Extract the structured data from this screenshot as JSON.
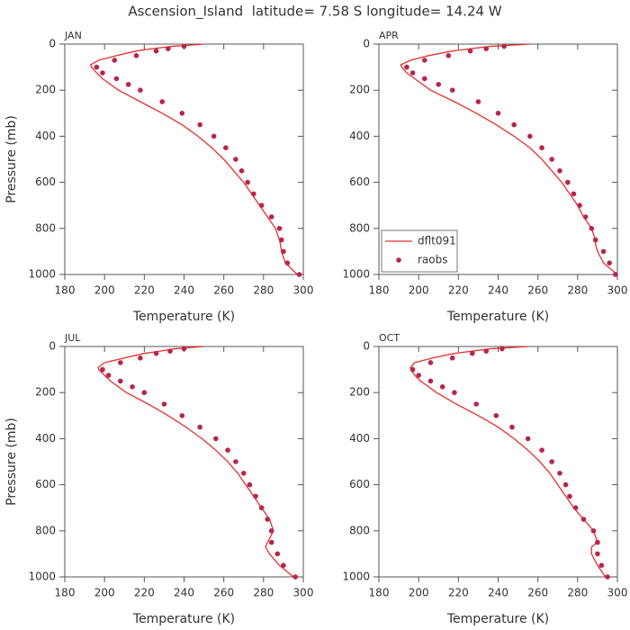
{
  "title": "Ascension_Island  latitude= 7.58 S longitude= 14.24 W",
  "chart_data": [
    {
      "type": "line",
      "panel_label": "JAN",
      "xlabel": "Temperature (K)",
      "ylabel": "Pressure (mb)",
      "xlim": [
        180,
        300
      ],
      "xticks": [
        180,
        200,
        220,
        240,
        260,
        280,
        300
      ],
      "ylim": [
        0,
        1000
      ],
      "yticks": [
        0,
        200,
        400,
        600,
        800,
        1000
      ],
      "y_reversed": true,
      "legend": false,
      "series": [
        {
          "type": "line",
          "color": "#e4302b",
          "x": [
            250,
            234,
            224,
            216,
            206,
            197,
            193,
            193.5,
            196,
            199,
            207,
            218,
            229,
            239,
            247,
            254,
            260,
            265,
            270,
            274,
            278,
            282,
            286,
            288,
            288.5,
            289,
            291,
            297
          ],
          "y": [
            0,
            10,
            20,
            30,
            50,
            70,
            90,
            100,
            125,
            150,
            200,
            250,
            300,
            350,
            400,
            450,
            500,
            550,
            600,
            650,
            700,
            750,
            800,
            850,
            870,
            900,
            950,
            1000
          ]
        },
        {
          "type": "scatter",
          "color": "#b8254d",
          "x": [
            240,
            232,
            226,
            216,
            205,
            196,
            199,
            206,
            212,
            218,
            229,
            239,
            248,
            255,
            261,
            266,
            269,
            272,
            275,
            279,
            284,
            288,
            289,
            290,
            292,
            298
          ],
          "y": [
            10,
            20,
            30,
            50,
            70,
            100,
            125,
            150,
            175,
            200,
            250,
            300,
            350,
            400,
            450,
            500,
            550,
            600,
            650,
            700,
            750,
            800,
            850,
            900,
            950,
            1000
          ]
        }
      ]
    },
    {
      "type": "line",
      "panel_label": "APR",
      "xlabel": "Temperature (K)",
      "xlim": [
        180,
        300
      ],
      "xticks": [
        180,
        200,
        220,
        240,
        260,
        280,
        300
      ],
      "ylim": [
        0,
        1000
      ],
      "yticks": [
        0,
        200,
        400,
        600,
        800,
        1000
      ],
      "y_reversed": true,
      "legend": "lower left",
      "series": [
        {
          "type": "line",
          "name": "dflt091",
          "color": "#e4302b",
          "x": [
            256,
            236,
            226,
            217,
            205,
            196,
            191,
            191.5,
            194,
            198,
            206,
            218,
            229,
            239,
            248,
            256,
            262,
            267,
            272,
            276,
            280,
            283,
            287,
            289,
            289,
            290,
            293,
            300
          ],
          "y": [
            0,
            10,
            20,
            30,
            50,
            70,
            90,
            100,
            125,
            150,
            200,
            250,
            300,
            350,
            400,
            450,
            500,
            550,
            600,
            650,
            700,
            750,
            800,
            850,
            870,
            900,
            950,
            1000
          ]
        },
        {
          "type": "scatter",
          "name": "raobs",
          "color": "#b8254d",
          "x": [
            243,
            234,
            226,
            215,
            203,
            194,
            197,
            203,
            210,
            217,
            230,
            240,
            248,
            256,
            262,
            267,
            271,
            275,
            278,
            281,
            284,
            287,
            289,
            293,
            296,
            299
          ],
          "y": [
            10,
            20,
            30,
            50,
            70,
            100,
            125,
            150,
            175,
            200,
            250,
            300,
            350,
            400,
            450,
            500,
            550,
            600,
            650,
            700,
            750,
            800,
            850,
            900,
            950,
            1000
          ]
        }
      ]
    },
    {
      "type": "line",
      "panel_label": "JUL",
      "xlabel": "Temperature (K)",
      "ylabel": "Pressure (mb)",
      "xlim": [
        180,
        300
      ],
      "xticks": [
        180,
        200,
        220,
        240,
        260,
        280,
        300
      ],
      "ylim": [
        0,
        1000
      ],
      "yticks": [
        0,
        200,
        400,
        600,
        800,
        1000
      ],
      "y_reversed": true,
      "legend": false,
      "series": [
        {
          "type": "line",
          "color": "#e4302b",
          "x": [
            250,
            235,
            228,
            220,
            210,
            200,
            197,
            197,
            200,
            203,
            211,
            222,
            232,
            241,
            249,
            256,
            262,
            267,
            271,
            275,
            279,
            283,
            285,
            282,
            281,
            283,
            288,
            295
          ],
          "y": [
            0,
            10,
            20,
            30,
            50,
            70,
            90,
            100,
            125,
            150,
            200,
            250,
            300,
            350,
            400,
            450,
            500,
            550,
            600,
            650,
            700,
            750,
            800,
            850,
            870,
            900,
            950,
            1000
          ]
        },
        {
          "type": "scatter",
          "color": "#b8254d",
          "x": [
            240,
            233,
            226,
            218,
            208,
            199,
            202,
            208,
            214,
            220,
            230,
            239,
            248,
            256,
            262,
            266,
            270,
            273,
            276,
            279,
            282,
            284,
            284,
            287,
            290,
            296
          ],
          "y": [
            10,
            20,
            30,
            50,
            70,
            100,
            125,
            150,
            175,
            200,
            250,
            300,
            350,
            400,
            450,
            500,
            550,
            600,
            650,
            700,
            750,
            800,
            850,
            900,
            950,
            1000
          ]
        }
      ]
    },
    {
      "type": "line",
      "panel_label": "OCT",
      "xlabel": "Temperature (K)",
      "xlim": [
        180,
        300
      ],
      "xticks": [
        180,
        200,
        220,
        240,
        260,
        280,
        300
      ],
      "ylim": [
        0,
        1000
      ],
      "yticks": [
        0,
        200,
        400,
        600,
        800,
        1000
      ],
      "y_reversed": true,
      "legend": false,
      "series": [
        {
          "type": "line",
          "color": "#e4302b",
          "x": [
            255,
            236,
            227,
            218,
            207,
            198,
            196,
            196,
            198,
            201,
            209,
            219,
            230,
            240,
            248,
            255,
            261,
            266,
            270,
            274,
            278,
            283,
            288,
            290,
            287,
            287,
            290,
            294
          ],
          "y": [
            0,
            10,
            20,
            30,
            50,
            70,
            90,
            100,
            125,
            150,
            200,
            250,
            300,
            350,
            400,
            450,
            500,
            550,
            600,
            650,
            700,
            750,
            800,
            850,
            870,
            900,
            950,
            1000
          ]
        },
        {
          "type": "scatter",
          "color": "#b8254d",
          "x": [
            242,
            234,
            227,
            217,
            206,
            197,
            200,
            206,
            212,
            218,
            229,
            239,
            247,
            255,
            262,
            267,
            271,
            274,
            276,
            279,
            283,
            288,
            290,
            290,
            292,
            295
          ],
          "y": [
            10,
            20,
            30,
            50,
            70,
            100,
            125,
            150,
            175,
            200,
            250,
            300,
            350,
            400,
            450,
            500,
            550,
            600,
            650,
            700,
            750,
            800,
            850,
            900,
            950,
            1000
          ]
        }
      ]
    }
  ]
}
